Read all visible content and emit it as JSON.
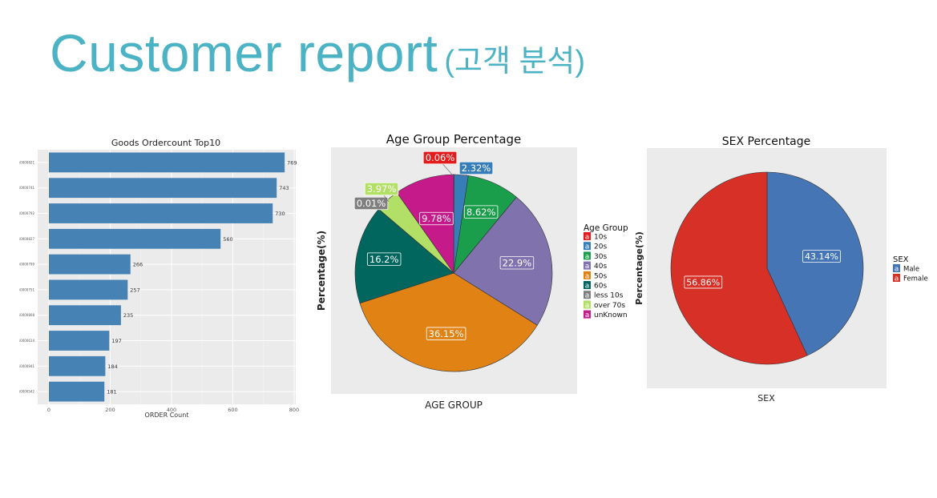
{
  "page": {
    "title_main": "Customer report",
    "title_sub": "(고객 분석)"
  },
  "chart_data": [
    {
      "type": "bar",
      "orientation": "horizontal",
      "title": "Goods Ordercount Top10",
      "xlabel": "ORDER Count",
      "ylabel": "",
      "categories": [
        "i0000821",
        "i0000741",
        "i0000792",
        "i0000827",
        "i0000799",
        "i0000751",
        "i0000808",
        "i0000614",
        "i0000941",
        "i0000542"
      ],
      "values": [
        769,
        743,
        730,
        560,
        266,
        257,
        235,
        197,
        184,
        181
      ],
      "xlim": [
        0,
        800
      ],
      "xticks": [
        0,
        200,
        400,
        600,
        800
      ],
      "xtick_labels": [
        "0",
        "200",
        "400",
        "600",
        "800"
      ],
      "bar_color": "#4682b4",
      "panel_color": "#ebebeb",
      "grid": true
    },
    {
      "type": "pie",
      "title": "Age Group Percentage",
      "xlabel": "AGE GROUP",
      "ylabel": "Percentage(%)",
      "legend_title": "Age Group",
      "legend_position": "right",
      "slices": [
        {
          "name": "10s",
          "value": 0.06,
          "label": "0.06%",
          "color": "#e41a1c"
        },
        {
          "name": "20s",
          "value": 2.32,
          "label": "2.32%",
          "color": "#377eb8"
        },
        {
          "name": "30s",
          "value": 8.62,
          "label": "8.62%",
          "color": "#1b9e4b"
        },
        {
          "name": "40s",
          "value": 22.9,
          "label": "22.9%",
          "color": "#7f72ad"
        },
        {
          "name": "50s",
          "value": 36.15,
          "label": "36.15%",
          "color": "#e08214"
        },
        {
          "name": "60s",
          "value": 16.2,
          "label": "16.2%",
          "color": "#00665e"
        },
        {
          "name": "less 10s",
          "value": 0.01,
          "label": "0.01%",
          "color": "#7f7f7f"
        },
        {
          "name": "over 70s",
          "value": 3.97,
          "label": "3.97%",
          "color": "#b2df65"
        },
        {
          "name": "unKnown",
          "value": 9.78,
          "label": "9.78%",
          "color": "#c51b8a"
        }
      ],
      "legend_glyph": "a"
    },
    {
      "type": "pie",
      "title": "SEX Percentage",
      "xlabel": "SEX",
      "ylabel": "Percentage(%)",
      "legend_title": "SEX",
      "legend_position": "right",
      "slices": [
        {
          "name": "Male",
          "value": 43.14,
          "label": "43.14%",
          "color": "#4575b4"
        },
        {
          "name": "Female",
          "value": 56.86,
          "label": "56.86%",
          "color": "#d73027"
        }
      ],
      "legend_glyph": "a"
    }
  ]
}
